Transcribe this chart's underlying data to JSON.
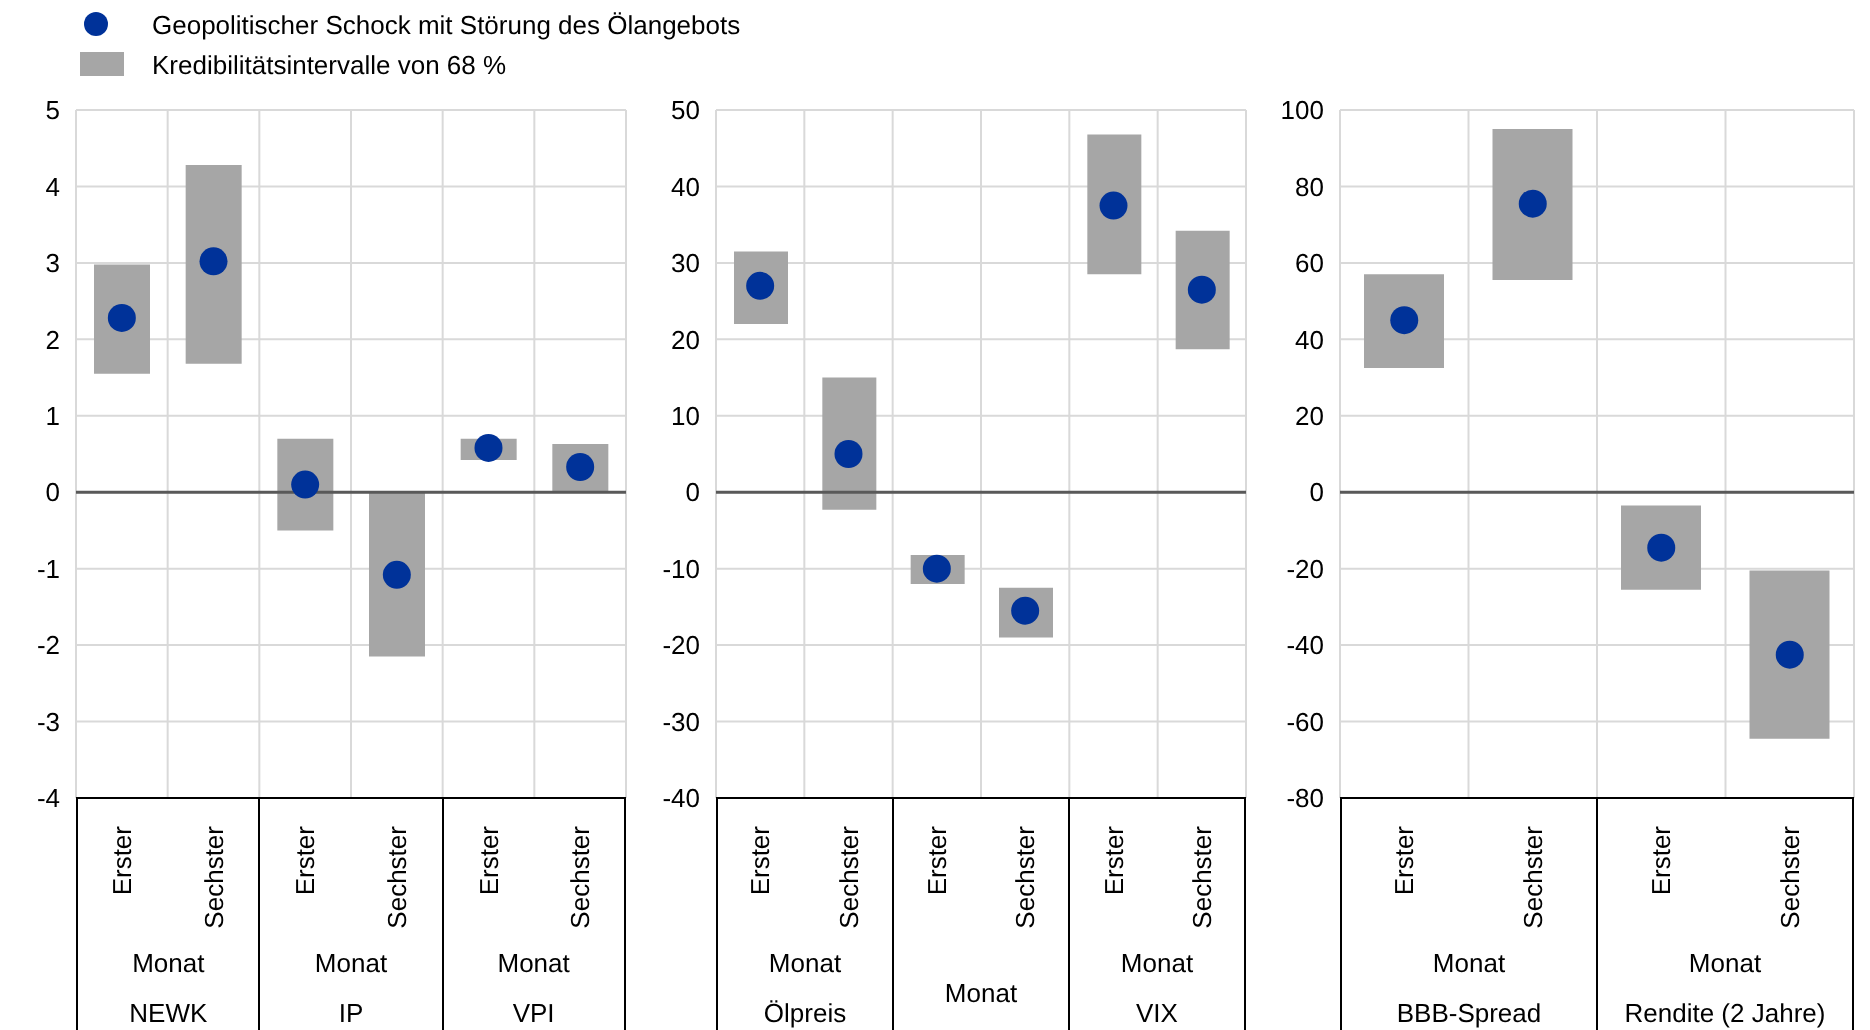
{
  "chart_data": [
    {
      "type": "bar",
      "categories": [
        "Erster",
        "Sechster",
        "Erster",
        "Sechster",
        "Erster",
        "Sechster"
      ],
      "annotations": [
        "Monat",
        "NEWK",
        "Monat",
        "IP",
        "Monat",
        "VPI"
      ],
      "ylim": [
        -4,
        5
      ],
      "yticks": [
        -4,
        -3,
        -2,
        -1,
        0,
        1,
        2,
        3,
        4,
        5
      ],
      "grid": true,
      "legend": "top",
      "ref_lines": [
        {
          "axis": "y",
          "value": 0
        }
      ],
      "series": [
        {
          "type": "scatter",
          "name": "Geopolitischer Schock mit Störung des Ölangebots",
          "color": "#003299",
          "marker": "circle",
          "values": [
            2.28,
            3.02,
            0.1,
            -1.08,
            0.58,
            0.33
          ]
        },
        {
          "name": "Kredibilitätsintervalle von 68 %",
          "color": "#a6a6a6",
          "base": [
            1.55,
            1.68,
            -0.5,
            -2.15,
            0.42,
            0
          ],
          "values": [
            1.43,
            2.6,
            1.2,
            2.15,
            0.28,
            0.63
          ]
        }
      ]
    },
    {
      "type": "bar",
      "categories": [
        "Erster",
        "Sechster",
        "Erster",
        "Sechster",
        "Erster",
        "Sechster"
      ],
      "annotations": [
        "Monat",
        "Ölpreis",
        "Monat",
        null,
        "Monat",
        "VIX"
      ],
      "ylim": [
        -40,
        50
      ],
      "yticks": [
        -40,
        -30,
        -20,
        -10,
        0,
        10,
        20,
        30,
        40,
        50
      ],
      "grid": true,
      "ref_lines": [
        {
          "axis": "y",
          "value": 0
        }
      ],
      "series": [
        {
          "type": "scatter",
          "color": "#003299",
          "marker": "circle",
          "values": [
            27,
            5,
            -10,
            -15.5,
            37.5,
            26.5
          ]
        },
        {
          "color": "#a6a6a6",
          "base": [
            22,
            -2.3,
            -12,
            -19,
            28.5,
            18.7
          ],
          "values": [
            9.5,
            17.3,
            3.8,
            6.5,
            18.3,
            15.5
          ]
        }
      ]
    },
    {
      "type": "bar",
      "categories": [
        "Erster",
        "Sechster",
        "Erster",
        "Sechster"
      ],
      "annotations": [
        "Monat",
        "BBB-Spread",
        "Monat",
        "Rendite (2 Jahre)"
      ],
      "ylim": [
        -80,
        100
      ],
      "yticks": [
        -80,
        -60,
        -40,
        -20,
        0,
        20,
        40,
        60,
        80,
        100
      ],
      "grid": true,
      "ref_lines": [
        {
          "axis": "y",
          "value": 0
        }
      ],
      "series": [
        {
          "type": "scatter",
          "color": "#003299",
          "marker": "circle",
          "values": [
            45,
            75.5,
            -14.5,
            -42.5
          ]
        },
        {
          "color": "#a6a6a6",
          "base": [
            32.5,
            55.5,
            -25.5,
            -64.5
          ],
          "values": [
            24.5,
            39.5,
            22,
            44
          ]
        }
      ]
    }
  ]
}
